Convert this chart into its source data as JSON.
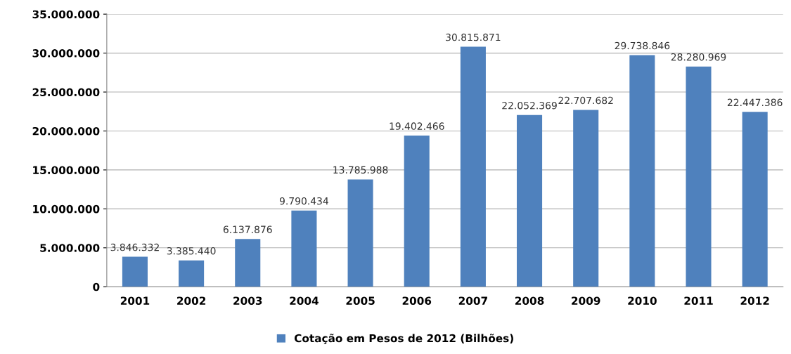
{
  "chart_data": {
    "type": "bar",
    "categories": [
      "2001",
      "2002",
      "2003",
      "2004",
      "2005",
      "2006",
      "2007",
      "2008",
      "2009",
      "2010",
      "2011",
      "2012"
    ],
    "series": [
      {
        "name": "Cotação em Pesos de 2012 (Bilhões)",
        "color": "#4f81bd",
        "values": [
          3846332,
          3385440,
          6137876,
          9790434,
          13785988,
          19402466,
          30815871,
          22052369,
          22707682,
          29738846,
          28280969,
          22447386
        ],
        "value_labels": [
          "3.846.332",
          "3.385.440",
          "6.137.876",
          "9.790.434",
          "13.785.988",
          "19.402.466",
          "30.815.871",
          "22.052.369",
          "22.707.682",
          "29.738.846",
          "28.280.969",
          "22.447.386"
        ]
      }
    ],
    "ylim": [
      0,
      35000000
    ],
    "yticks": [
      {
        "value": 0,
        "label": "0"
      },
      {
        "value": 5000000,
        "label": "5.000.000"
      },
      {
        "value": 10000000,
        "label": "10.000.000"
      },
      {
        "value": 15000000,
        "label": "15.000.000"
      },
      {
        "value": 20000000,
        "label": "20.000.000"
      },
      {
        "value": 25000000,
        "label": "25.000.000"
      },
      {
        "value": 30000000,
        "label": "30.000.000"
      },
      {
        "value": 35000000,
        "label": "35.000.000"
      }
    ],
    "grid": "y",
    "legend": "bottom"
  }
}
